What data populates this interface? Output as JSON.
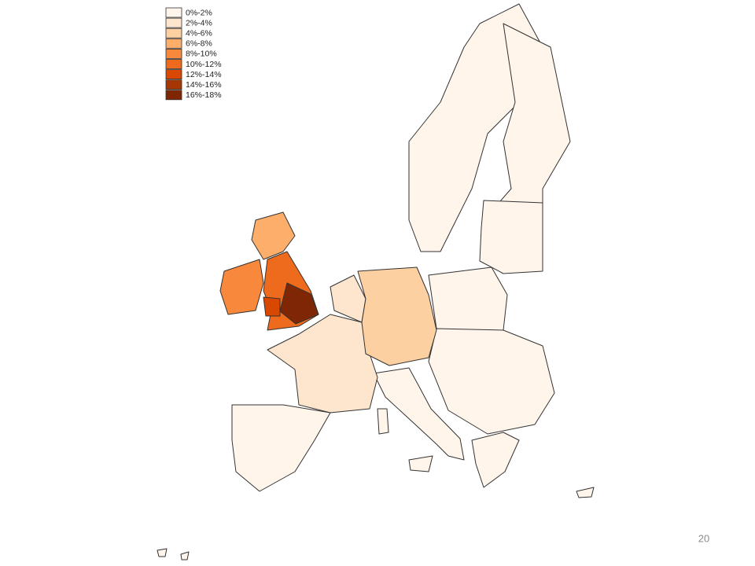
{
  "legend": [
    {
      "label": "0%-2%",
      "color": "#fff5eb"
    },
    {
      "label": "2%-4%",
      "color": "#fee6ce"
    },
    {
      "label": "4%-6%",
      "color": "#fdd0a2"
    },
    {
      "label": "6%-8%",
      "color": "#fdae6b"
    },
    {
      "label": "8%-10%",
      "color": "#f7883c"
    },
    {
      "label": "10%-12%",
      "color": "#ee6a1c"
    },
    {
      "label": "12%-14%",
      "color": "#d94801"
    },
    {
      "label": "14%-16%",
      "color": "#a63603"
    },
    {
      "label": "16%-18%",
      "color": "#7f2704"
    }
  ],
  "page_number": "20"
}
